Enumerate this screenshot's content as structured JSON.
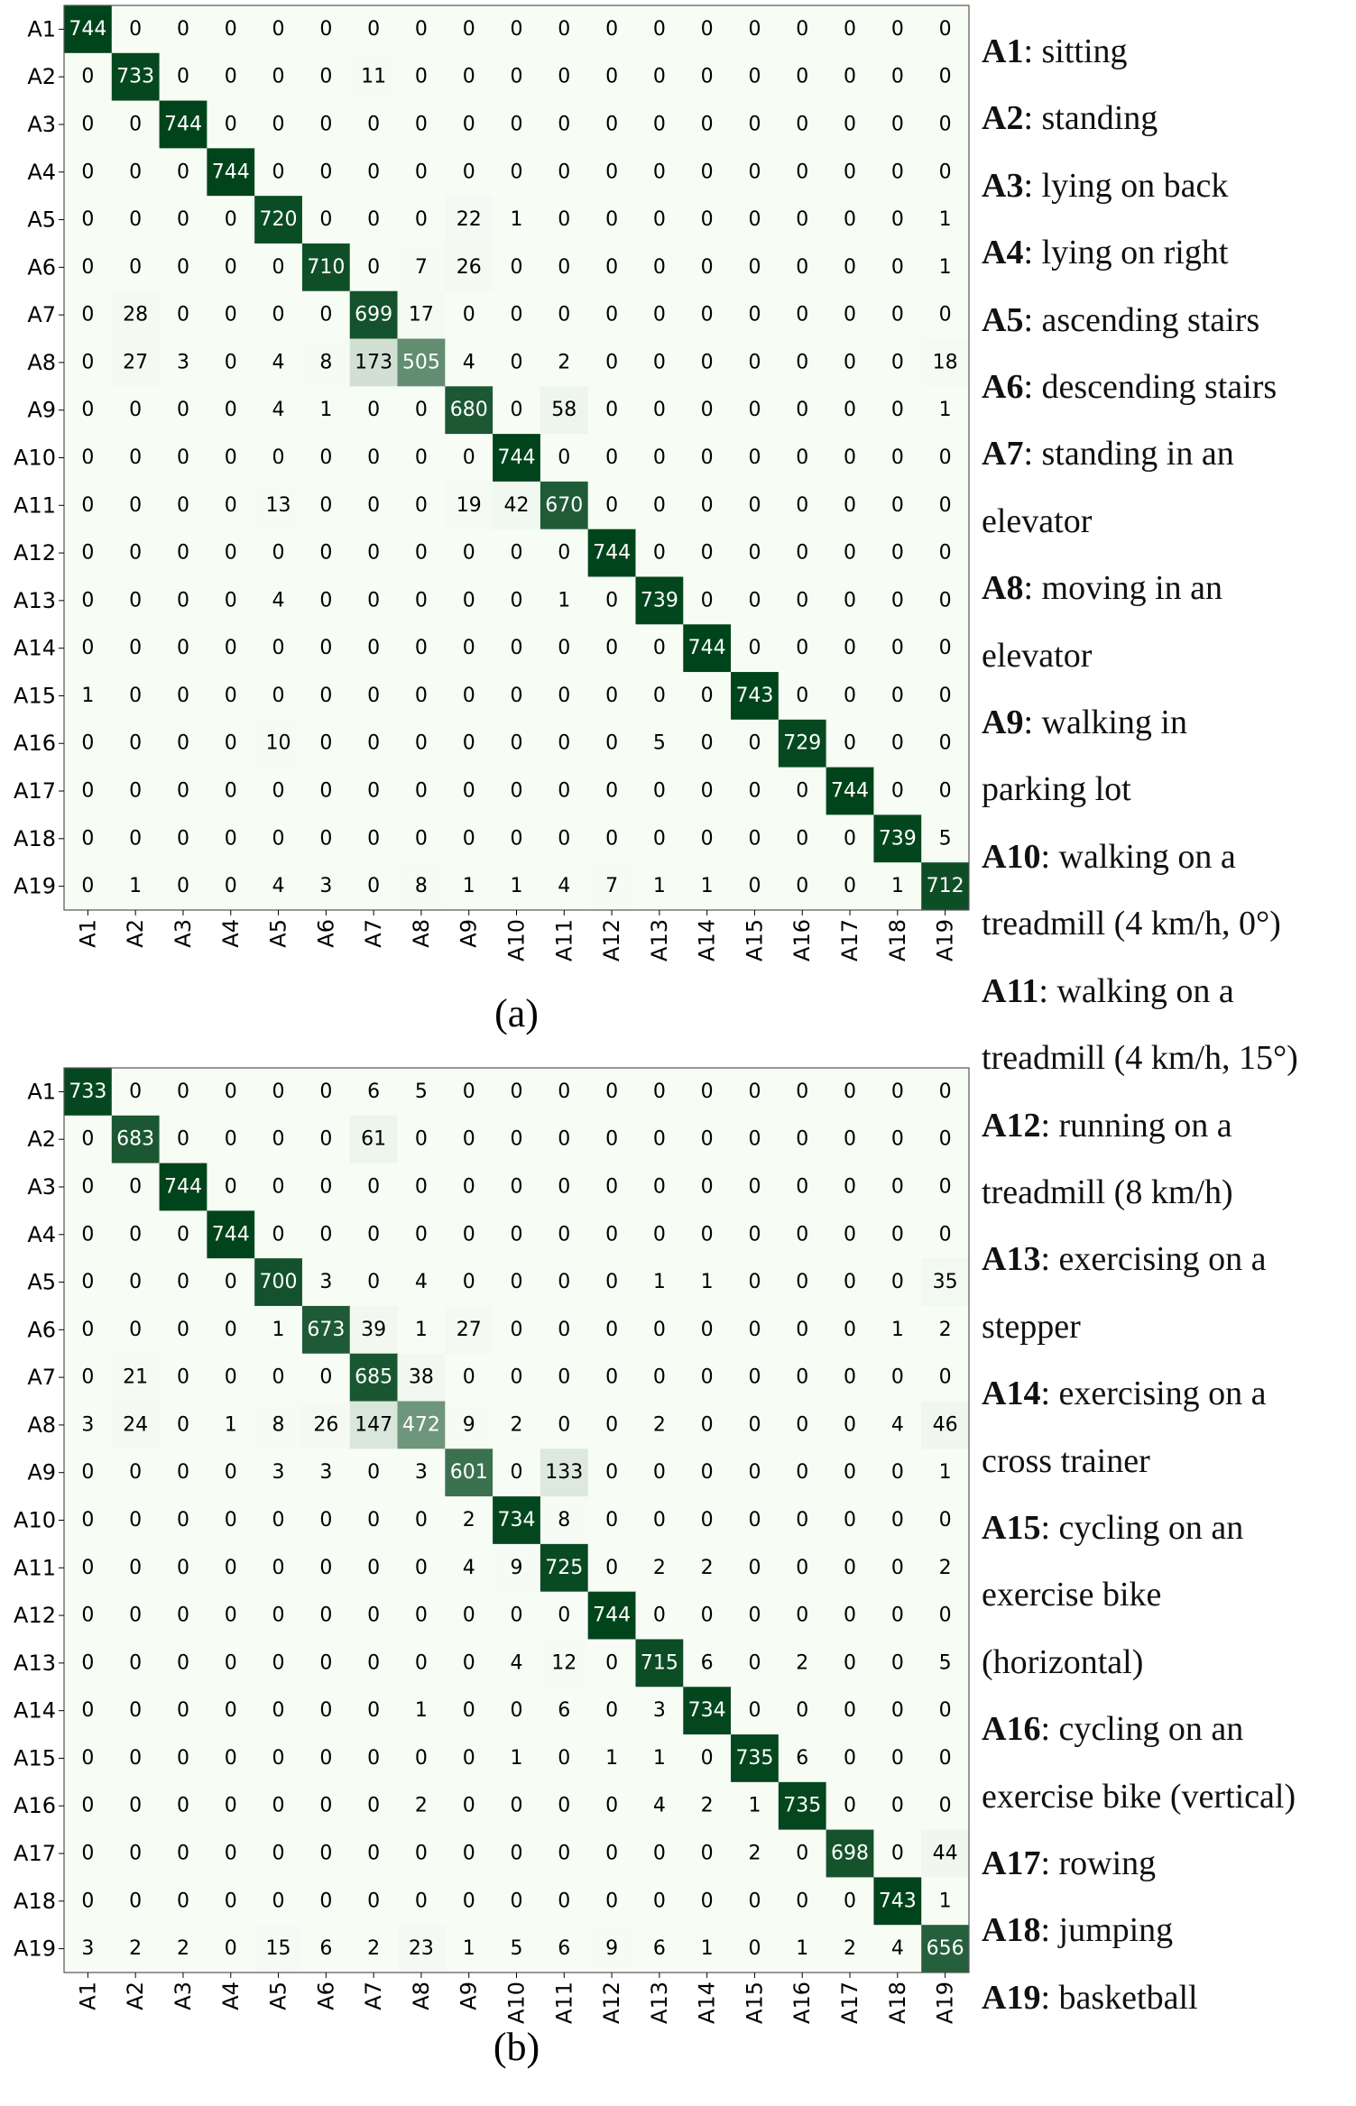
{
  "chart_data": [
    {
      "type": "heatmap",
      "caption": "(a)",
      "row_labels": [
        "A1",
        "A2",
        "A3",
        "A4",
        "A5",
        "A6",
        "A7",
        "A8",
        "A9",
        "A10",
        "A11",
        "A12",
        "A13",
        "A14",
        "A15",
        "A16",
        "A17",
        "A18",
        "A19"
      ],
      "col_labels": [
        "A1",
        "A2",
        "A3",
        "A4",
        "A5",
        "A6",
        "A7",
        "A8",
        "A9",
        "A10",
        "A11",
        "A12",
        "A13",
        "A14",
        "A15",
        "A16",
        "A17",
        "A18",
        "A19"
      ],
      "colormap": [
        "#f7fcf5",
        "#00441b"
      ],
      "vmax": 744,
      "matrix": [
        [
          744,
          0,
          0,
          0,
          0,
          0,
          0,
          0,
          0,
          0,
          0,
          0,
          0,
          0,
          0,
          0,
          0,
          0,
          0
        ],
        [
          0,
          733,
          0,
          0,
          0,
          0,
          11,
          0,
          0,
          0,
          0,
          0,
          0,
          0,
          0,
          0,
          0,
          0,
          0
        ],
        [
          0,
          0,
          744,
          0,
          0,
          0,
          0,
          0,
          0,
          0,
          0,
          0,
          0,
          0,
          0,
          0,
          0,
          0,
          0
        ],
        [
          0,
          0,
          0,
          744,
          0,
          0,
          0,
          0,
          0,
          0,
          0,
          0,
          0,
          0,
          0,
          0,
          0,
          0,
          0
        ],
        [
          0,
          0,
          0,
          0,
          720,
          0,
          0,
          0,
          22,
          1,
          0,
          0,
          0,
          0,
          0,
          0,
          0,
          0,
          1
        ],
        [
          0,
          0,
          0,
          0,
          0,
          710,
          0,
          7,
          26,
          0,
          0,
          0,
          0,
          0,
          0,
          0,
          0,
          0,
          1
        ],
        [
          0,
          28,
          0,
          0,
          0,
          0,
          699,
          17,
          0,
          0,
          0,
          0,
          0,
          0,
          0,
          0,
          0,
          0,
          0
        ],
        [
          0,
          27,
          3,
          0,
          4,
          8,
          173,
          505,
          4,
          0,
          2,
          0,
          0,
          0,
          0,
          0,
          0,
          0,
          18
        ],
        [
          0,
          0,
          0,
          0,
          4,
          1,
          0,
          0,
          680,
          0,
          58,
          0,
          0,
          0,
          0,
          0,
          0,
          0,
          1
        ],
        [
          0,
          0,
          0,
          0,
          0,
          0,
          0,
          0,
          0,
          744,
          0,
          0,
          0,
          0,
          0,
          0,
          0,
          0,
          0
        ],
        [
          0,
          0,
          0,
          0,
          13,
          0,
          0,
          0,
          19,
          42,
          670,
          0,
          0,
          0,
          0,
          0,
          0,
          0,
          0
        ],
        [
          0,
          0,
          0,
          0,
          0,
          0,
          0,
          0,
          0,
          0,
          0,
          744,
          0,
          0,
          0,
          0,
          0,
          0,
          0
        ],
        [
          0,
          0,
          0,
          0,
          4,
          0,
          0,
          0,
          0,
          0,
          1,
          0,
          739,
          0,
          0,
          0,
          0,
          0,
          0
        ],
        [
          0,
          0,
          0,
          0,
          0,
          0,
          0,
          0,
          0,
          0,
          0,
          0,
          0,
          744,
          0,
          0,
          0,
          0,
          0
        ],
        [
          1,
          0,
          0,
          0,
          0,
          0,
          0,
          0,
          0,
          0,
          0,
          0,
          0,
          0,
          743,
          0,
          0,
          0,
          0
        ],
        [
          0,
          0,
          0,
          0,
          10,
          0,
          0,
          0,
          0,
          0,
          0,
          0,
          5,
          0,
          0,
          729,
          0,
          0,
          0
        ],
        [
          0,
          0,
          0,
          0,
          0,
          0,
          0,
          0,
          0,
          0,
          0,
          0,
          0,
          0,
          0,
          0,
          744,
          0,
          0
        ],
        [
          0,
          0,
          0,
          0,
          0,
          0,
          0,
          0,
          0,
          0,
          0,
          0,
          0,
          0,
          0,
          0,
          0,
          739,
          5
        ],
        [
          0,
          1,
          0,
          0,
          4,
          3,
          0,
          8,
          1,
          1,
          4,
          7,
          1,
          1,
          0,
          0,
          0,
          1,
          712
        ]
      ]
    },
    {
      "type": "heatmap",
      "caption": "(b)",
      "row_labels": [
        "A1",
        "A2",
        "A3",
        "A4",
        "A5",
        "A6",
        "A7",
        "A8",
        "A9",
        "A10",
        "A11",
        "A12",
        "A13",
        "A14",
        "A15",
        "A16",
        "A17",
        "A18",
        "A19"
      ],
      "col_labels": [
        "A1",
        "A2",
        "A3",
        "A4",
        "A5",
        "A6",
        "A7",
        "A8",
        "A9",
        "A10",
        "A11",
        "A12",
        "A13",
        "A14",
        "A15",
        "A16",
        "A17",
        "A18",
        "A19"
      ],
      "colormap": [
        "#f7fcf5",
        "#00441b"
      ],
      "vmax": 744,
      "matrix": [
        [
          733,
          0,
          0,
          0,
          0,
          0,
          6,
          5,
          0,
          0,
          0,
          0,
          0,
          0,
          0,
          0,
          0,
          0,
          0
        ],
        [
          0,
          683,
          0,
          0,
          0,
          0,
          61,
          0,
          0,
          0,
          0,
          0,
          0,
          0,
          0,
          0,
          0,
          0,
          0
        ],
        [
          0,
          0,
          744,
          0,
          0,
          0,
          0,
          0,
          0,
          0,
          0,
          0,
          0,
          0,
          0,
          0,
          0,
          0,
          0
        ],
        [
          0,
          0,
          0,
          744,
          0,
          0,
          0,
          0,
          0,
          0,
          0,
          0,
          0,
          0,
          0,
          0,
          0,
          0,
          0
        ],
        [
          0,
          0,
          0,
          0,
          700,
          3,
          0,
          4,
          0,
          0,
          0,
          0,
          1,
          1,
          0,
          0,
          0,
          0,
          35
        ],
        [
          0,
          0,
          0,
          0,
          1,
          673,
          39,
          1,
          27,
          0,
          0,
          0,
          0,
          0,
          0,
          0,
          0,
          1,
          2
        ],
        [
          0,
          21,
          0,
          0,
          0,
          0,
          685,
          38,
          0,
          0,
          0,
          0,
          0,
          0,
          0,
          0,
          0,
          0,
          0
        ],
        [
          3,
          24,
          0,
          1,
          8,
          26,
          147,
          472,
          9,
          2,
          0,
          0,
          2,
          0,
          0,
          0,
          0,
          4,
          46
        ],
        [
          0,
          0,
          0,
          0,
          3,
          3,
          0,
          3,
          601,
          0,
          133,
          0,
          0,
          0,
          0,
          0,
          0,
          0,
          1
        ],
        [
          0,
          0,
          0,
          0,
          0,
          0,
          0,
          0,
          2,
          734,
          8,
          0,
          0,
          0,
          0,
          0,
          0,
          0,
          0
        ],
        [
          0,
          0,
          0,
          0,
          0,
          0,
          0,
          0,
          4,
          9,
          725,
          0,
          2,
          2,
          0,
          0,
          0,
          0,
          2
        ],
        [
          0,
          0,
          0,
          0,
          0,
          0,
          0,
          0,
          0,
          0,
          0,
          744,
          0,
          0,
          0,
          0,
          0,
          0,
          0
        ],
        [
          0,
          0,
          0,
          0,
          0,
          0,
          0,
          0,
          0,
          4,
          12,
          0,
          715,
          6,
          0,
          2,
          0,
          0,
          5
        ],
        [
          0,
          0,
          0,
          0,
          0,
          0,
          0,
          1,
          0,
          0,
          6,
          0,
          3,
          734,
          0,
          0,
          0,
          0,
          0
        ],
        [
          0,
          0,
          0,
          0,
          0,
          0,
          0,
          0,
          0,
          1,
          0,
          1,
          1,
          0,
          735,
          6,
          0,
          0,
          0
        ],
        [
          0,
          0,
          0,
          0,
          0,
          0,
          0,
          2,
          0,
          0,
          0,
          0,
          4,
          2,
          1,
          735,
          0,
          0,
          0
        ],
        [
          0,
          0,
          0,
          0,
          0,
          0,
          0,
          0,
          0,
          0,
          0,
          0,
          0,
          0,
          2,
          0,
          698,
          0,
          44
        ],
        [
          0,
          0,
          0,
          0,
          0,
          0,
          0,
          0,
          0,
          0,
          0,
          0,
          0,
          0,
          0,
          0,
          0,
          743,
          1
        ],
        [
          3,
          2,
          2,
          0,
          15,
          6,
          2,
          23,
          1,
          5,
          6,
          9,
          6,
          1,
          0,
          1,
          2,
          4,
          656
        ]
      ]
    }
  ],
  "legend": [
    {
      "code": "A1",
      "text": ": sitting"
    },
    {
      "code": "A2",
      "text": ": standing"
    },
    {
      "code": "A3",
      "text": ": lying on back"
    },
    {
      "code": "A4",
      "text": ": lying on right"
    },
    {
      "code": "A5",
      "text": ": ascending stairs"
    },
    {
      "code": "A6",
      "text": ": descending stairs"
    },
    {
      "code": "A7",
      "text": ": standing in an"
    },
    {
      "code": "",
      "text": "elevator"
    },
    {
      "code": "A8",
      "text": ": moving in an"
    },
    {
      "code": "",
      "text": "elevator"
    },
    {
      "code": "A9",
      "text": ": walking in"
    },
    {
      "code": "",
      "text": "parking lot"
    },
    {
      "code": "A10",
      "text": ": walking on a"
    },
    {
      "code": "",
      "text": "treadmill (4 km/h, 0°)"
    },
    {
      "code": "A11",
      "text": ": walking on a"
    },
    {
      "code": "",
      "text": "treadmill (4 km/h, 15°)"
    },
    {
      "code": "A12",
      "text": ": running on a"
    },
    {
      "code": "",
      "text": "treadmill (8 km/h)"
    },
    {
      "code": "A13",
      "text": ": exercising on a"
    },
    {
      "code": "",
      "text": "stepper"
    },
    {
      "code": "A14",
      "text": ": exercising on a"
    },
    {
      "code": "",
      "text": "cross trainer"
    },
    {
      "code": "A15",
      "text": ": cycling on an"
    },
    {
      "code": "",
      "text": "exercise bike"
    },
    {
      "code": "",
      "text": "(horizontal)"
    },
    {
      "code": "A16",
      "text": ": cycling on an"
    },
    {
      "code": "",
      "text": "exercise bike (vertical)"
    },
    {
      "code": "A17",
      "text": ": rowing"
    },
    {
      "code": "A18",
      "text": ": jumping"
    },
    {
      "code": "A19",
      "text": ": basketball"
    }
  ]
}
